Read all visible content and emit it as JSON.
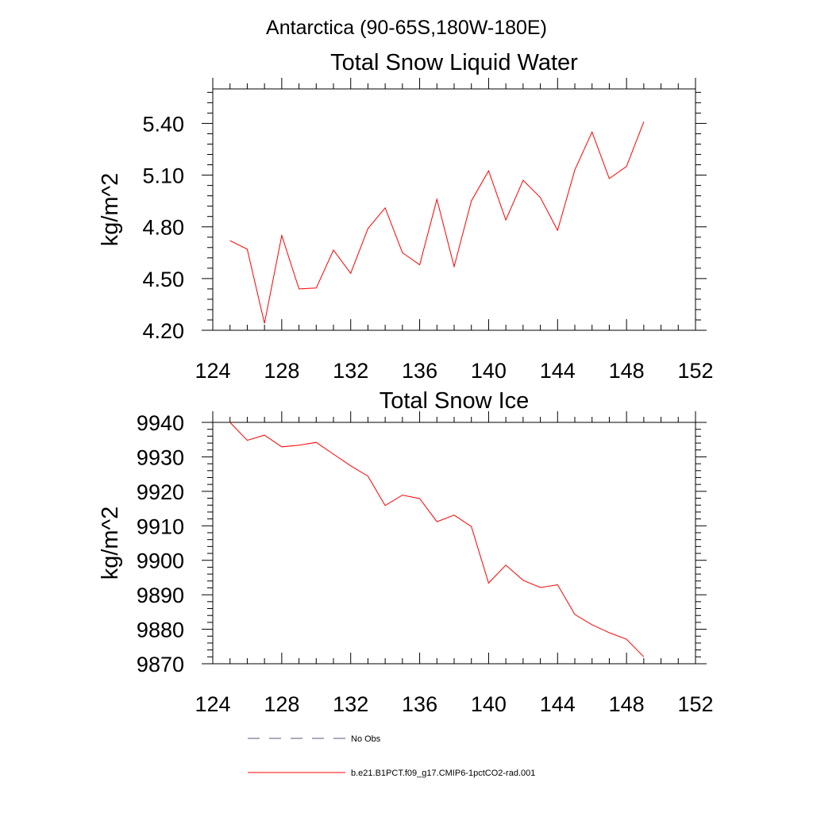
{
  "page": {
    "supertitle": "Antarctica (90-65S,180W-180E)"
  },
  "colors": {
    "axis": "#000000",
    "model_line": "#ff0000",
    "obs_line": "#555577"
  },
  "chart_data": [
    {
      "type": "line",
      "title": "Total Snow Liquid Water",
      "xlabel": "",
      "ylabel": "kg/m^2",
      "xlim": [
        124,
        152
      ],
      "ylim": [
        4.2,
        5.6
      ],
      "xticks": [
        124,
        128,
        132,
        136,
        140,
        144,
        148,
        152
      ],
      "xtick_labels": [
        "124",
        "128",
        "132",
        "136",
        "140",
        "144",
        "148",
        "152"
      ],
      "yticks": [
        4.2,
        4.5,
        4.8,
        5.1,
        5.4
      ],
      "ytick_labels": [
        "4.20",
        "4.50",
        "4.80",
        "5.10",
        "5.40"
      ],
      "grid": false,
      "series": [
        {
          "name": "b.e21.B1PCT.f09_g17.CMIP6-1pctCO2-rad.001",
          "x": [
            125,
            126,
            127,
            128,
            129,
            130,
            131,
            132,
            133,
            134,
            135,
            136,
            137,
            138,
            139,
            140,
            141,
            142,
            143,
            144,
            145,
            146,
            147,
            148,
            149
          ],
          "values": [
            4.72,
            4.67,
            4.24,
            4.75,
            4.44,
            4.445,
            4.665,
            4.53,
            4.79,
            4.91,
            4.65,
            4.58,
            4.96,
            4.57,
            4.95,
            5.125,
            4.84,
            5.07,
            4.97,
            4.78,
            5.13,
            5.35,
            5.08,
            5.15,
            5.41
          ]
        }
      ]
    },
    {
      "type": "line",
      "title": "Total Snow Ice",
      "xlabel": "",
      "ylabel": "kg/m^2",
      "xlim": [
        124,
        152
      ],
      "ylim": [
        9870,
        9940
      ],
      "xticks": [
        124,
        128,
        132,
        136,
        140,
        144,
        148,
        152
      ],
      "xtick_labels": [
        "124",
        "128",
        "132",
        "136",
        "140",
        "144",
        "148",
        "152"
      ],
      "yticks": [
        9870,
        9880,
        9890,
        9900,
        9910,
        9920,
        9930,
        9940
      ],
      "ytick_labels": [
        "9870",
        "9880",
        "9890",
        "9900",
        "9910",
        "9920",
        "9930",
        "9940"
      ],
      "grid": false,
      "series": [
        {
          "name": "b.e21.B1PCT.f09_g17.CMIP6-1pctCO2-rad.001",
          "x": [
            125,
            126,
            127,
            128,
            129,
            130,
            131,
            132,
            133,
            134,
            135,
            136,
            137,
            138,
            139,
            140,
            141,
            142,
            143,
            144,
            145,
            146,
            147,
            148,
            149
          ],
          "values": [
            9940,
            9934.8,
            9936.3,
            9932.9,
            9933.4,
            9934.2,
            9930.8,
            9927.4,
            9924.4,
            9915.9,
            9918.9,
            9917.9,
            9911.2,
            9913.1,
            9909.8,
            9893.4,
            9898.6,
            9894.2,
            9892.1,
            9892.9,
            9884.3,
            9881.3,
            9879,
            9877.1,
            9872
          ]
        }
      ]
    }
  ],
  "legend": {
    "placement": "bottom",
    "entries": [
      {
        "label": "No Obs",
        "style": "dashed"
      },
      {
        "label": "b.e21.B1PCT.f09_g17.CMIP6-1pctCO2-rad.001",
        "style": "solid"
      }
    ]
  }
}
